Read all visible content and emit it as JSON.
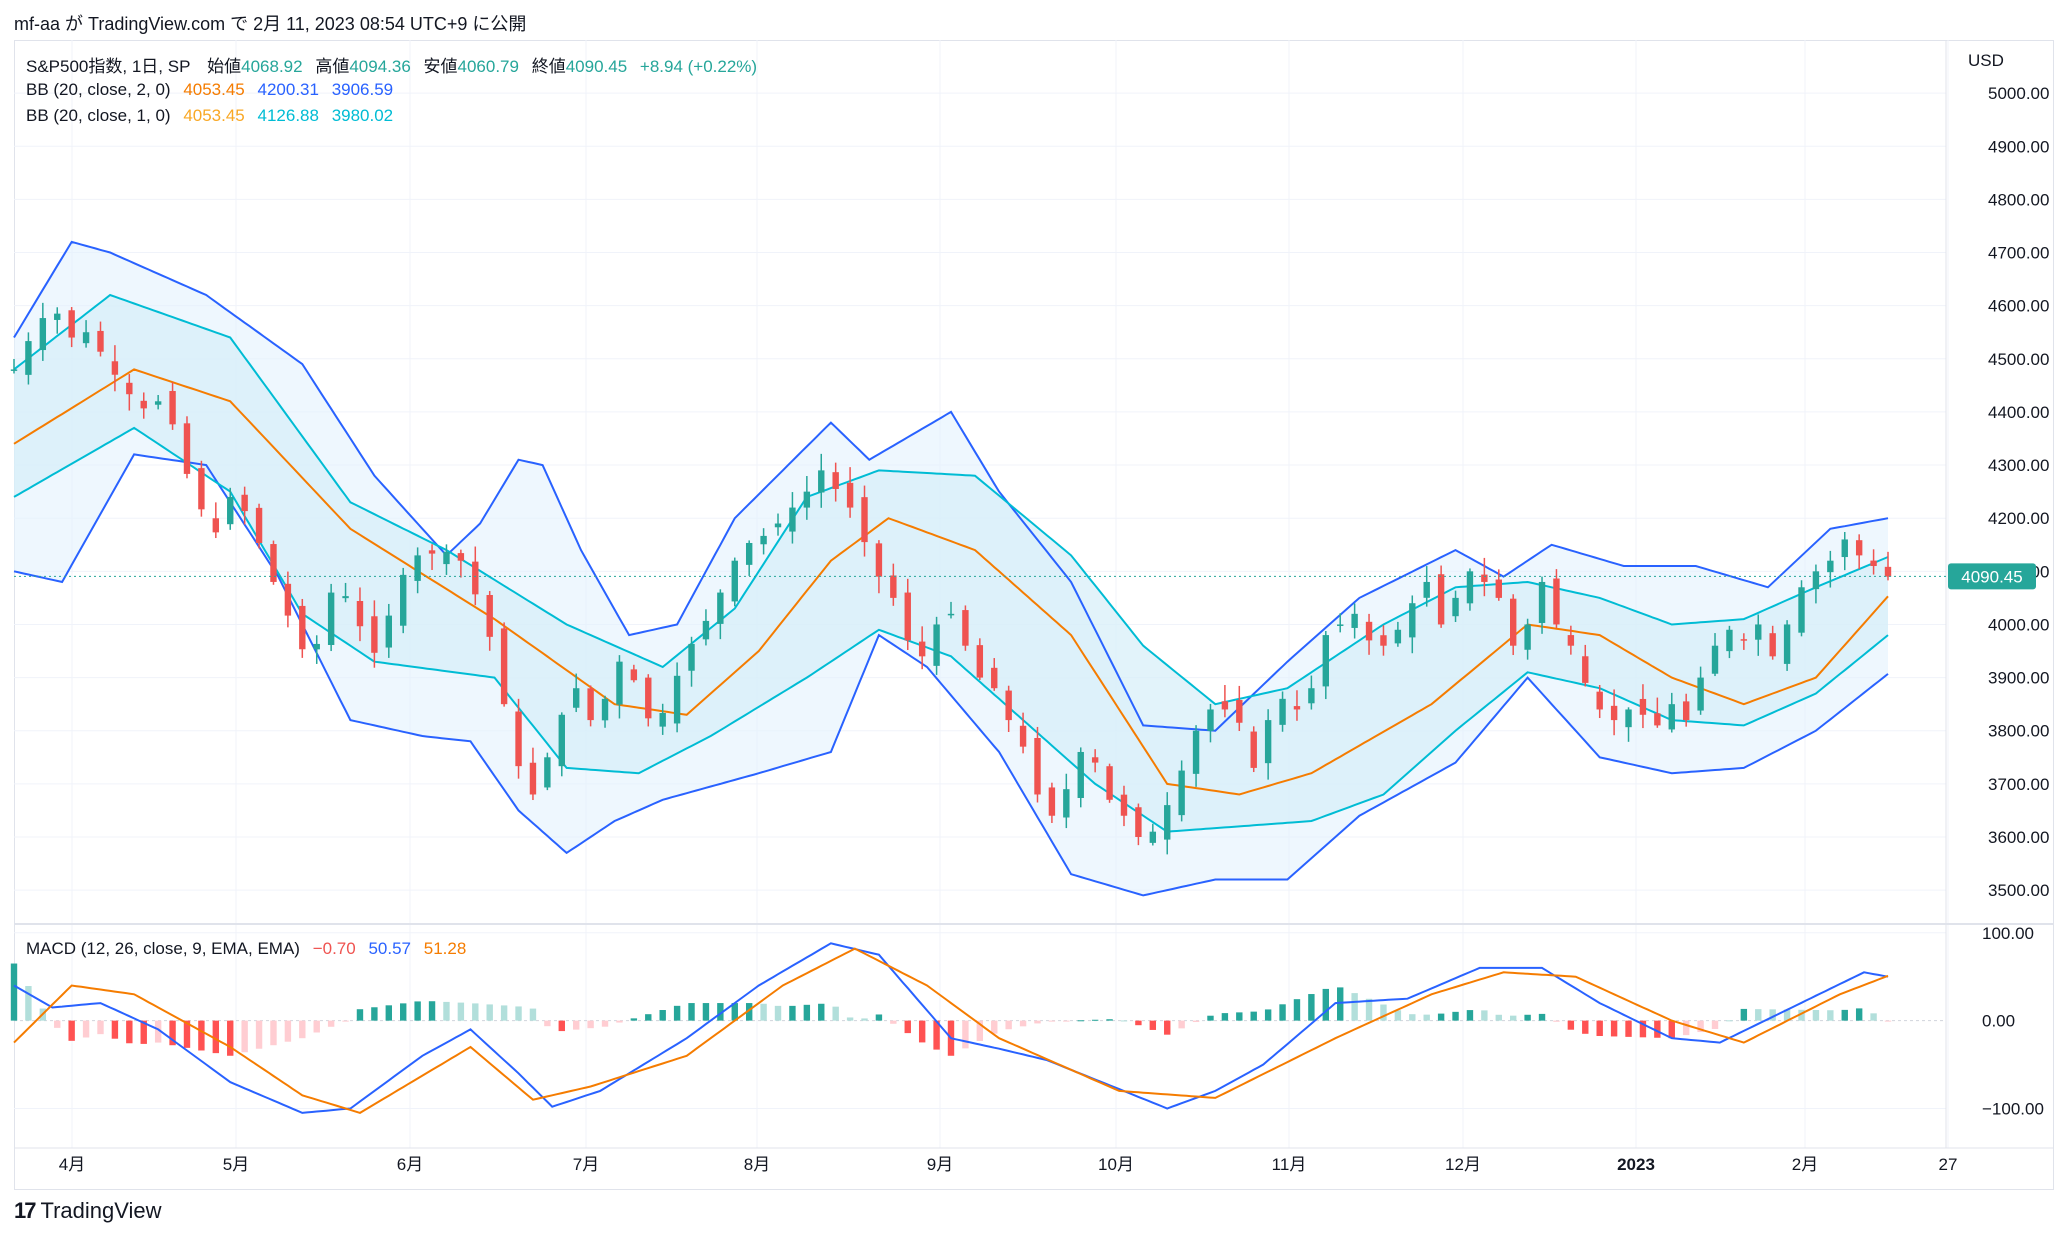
{
  "header": {
    "publish_line": "mf-aa が TradingView.com で 2月 11, 2023 08:54 UTC+9 に公開"
  },
  "legend": {
    "symbol": "S&P500指数, 1日, SP",
    "open_label": "始値",
    "open": "4068.92",
    "high_label": "高値",
    "high": "4094.36",
    "low_label": "安値",
    "low": "4060.79",
    "close_label": "終値",
    "close": "4090.45",
    "change": "+8.94 (+0.22%)",
    "bb2_label": "BB (20, close, 2, 0)",
    "bb2_basis": "4053.45",
    "bb2_upper": "4200.31",
    "bb2_lower": "3906.59",
    "bb1_label": "BB (20, close, 1, 0)",
    "bb1_basis": "4053.45",
    "bb1_upper": "4126.88",
    "bb1_lower": "3980.02",
    "macd_label": "MACD (12, 26, close, 9, EMA, EMA)",
    "macd_hist": "−0.70",
    "macd_line": "50.57",
    "macd_signal": "51.28"
  },
  "price_axis": {
    "currency": "USD",
    "last_price_label": "4090.45"
  },
  "footer": {
    "logo": "17",
    "brand": "TradingView"
  },
  "colors": {
    "up": "#26a69a",
    "down": "#ef5350",
    "basis": "#f57c00",
    "bb2_band": "#2962ff",
    "bb1_band": "#00bcd4",
    "macd_line": "#2962ff",
    "signal_line": "#f57c00",
    "hist_up_strong": "#26a69a",
    "hist_up_weak": "#b2dfdb",
    "hist_down_strong": "#ff5252",
    "hist_down_weak": "#ffcdd2"
  },
  "chart_data": [
    {
      "type": "candlestick",
      "title": "S&P500指数, 1日, SP",
      "ylim": [
        3440,
        5100
      ],
      "yticks": [
        "3500.00",
        "3600.00",
        "3700.00",
        "3800.00",
        "3900.00",
        "4000.00",
        "4100.00",
        "4200.00",
        "4300.00",
        "4400.00",
        "4500.00",
        "4600.00",
        "4700.00",
        "4800.00",
        "4900.00",
        "5000.00"
      ],
      "x_labels": [
        "4月",
        "5月",
        "6月",
        "7月",
        "8月",
        "9月",
        "10月",
        "11月",
        "12月",
        "2023",
        "2月",
        "27"
      ],
      "close_path": [
        [
          0,
          4480
        ],
        [
          2,
          4520
        ],
        [
          5,
          4560
        ],
        [
          8,
          4610
        ],
        [
          10,
          4560
        ],
        [
          13,
          4530
        ],
        [
          16,
          4560
        ],
        [
          19,
          4490
        ],
        [
          22,
          4460
        ],
        [
          25,
          4420
        ],
        [
          28,
          4400
        ],
        [
          31,
          4430
        ],
        [
          34,
          4350
        ],
        [
          37,
          4250
        ],
        [
          40,
          4200
        ],
        [
          43,
          4160
        ],
        [
          46,
          4280
        ],
        [
          49,
          4180
        ],
        [
          52,
          4140
        ],
        [
          55,
          4050
        ],
        [
          58,
          4000
        ],
        [
          61,
          3930
        ],
        [
          64,
          3980
        ],
        [
          67,
          4100
        ],
        [
          70,
          4030
        ],
        [
          73,
          3980
        ],
        [
          76,
          3930
        ],
        [
          79,
          4060
        ],
        [
          82,
          4110
        ],
        [
          85,
          4140
        ],
        [
          88,
          4130
        ],
        [
          91,
          4140
        ],
        [
          94,
          4110
        ],
        [
          97,
          4030
        ],
        [
          100,
          3950
        ],
        [
          103,
          3800
        ],
        [
          106,
          3700
        ],
        [
          108,
          3680
        ],
        [
          110,
          3730
        ],
        [
          112,
          3770
        ],
        [
          114,
          3830
        ],
        [
          116,
          3900
        ],
        [
          118,
          3860
        ],
        [
          120,
          3820
        ],
        [
          122,
          3840
        ],
        [
          124,
          3880
        ],
        [
          126,
          3930
        ],
        [
          128,
          3920
        ],
        [
          130,
          3870
        ],
        [
          133,
          3800
        ],
        [
          136,
          3850
        ],
        [
          139,
          3930
        ],
        [
          142,
          3980
        ],
        [
          145,
          4020
        ],
        [
          148,
          4080
        ],
        [
          151,
          4140
        ],
        [
          154,
          4160
        ],
        [
          157,
          4170
        ],
        [
          160,
          4200
        ],
        [
          163,
          4230
        ],
        [
          166,
          4260
        ],
        [
          168,
          4290
        ],
        [
          170,
          4270
        ],
        [
          172,
          4240
        ],
        [
          174,
          4220
        ],
        [
          176,
          4170
        ],
        [
          178,
          4140
        ],
        [
          180,
          4090
        ],
        [
          183,
          4050
        ],
        [
          186,
          3970
        ],
        [
          189,
          3940
        ],
        [
          192,
          4000
        ],
        [
          195,
          4020
        ],
        [
          198,
          3960
        ],
        [
          201,
          3900
        ],
        [
          204,
          3880
        ],
        [
          207,
          3820
        ],
        [
          210,
          3770
        ],
        [
          213,
          3680
        ],
        [
          216,
          3640
        ],
        [
          219,
          3690
        ],
        [
          222,
          3760
        ],
        [
          225,
          3740
        ],
        [
          228,
          3670
        ],
        [
          231,
          3640
        ],
        [
          234,
          3600
        ],
        [
          236,
          3630
        ],
        [
          238,
          3590
        ],
        [
          240,
          3660
        ],
        [
          242,
          3700
        ],
        [
          244,
          3750
        ],
        [
          246,
          3800
        ],
        [
          248,
          3820
        ],
        [
          250,
          3860
        ],
        [
          252,
          3840
        ],
        [
          254,
          3870
        ],
        [
          256,
          3760
        ],
        [
          258,
          3730
        ],
        [
          261,
          3820
        ],
        [
          264,
          3860
        ],
        [
          267,
          3840
        ],
        [
          270,
          3880
        ],
        [
          273,
          3980
        ],
        [
          276,
          4000
        ],
        [
          279,
          4020
        ],
        [
          282,
          3970
        ],
        [
          285,
          3960
        ],
        [
          288,
          3990
        ],
        [
          291,
          4040
        ],
        [
          294,
          4080
        ],
        [
          297,
          4000
        ],
        [
          300,
          4050
        ],
        [
          303,
          4100
        ],
        [
          306,
          4080
        ],
        [
          309,
          4050
        ],
        [
          312,
          3960
        ],
        [
          315,
          4000
        ],
        [
          318,
          4080
        ],
        [
          321,
          4000
        ],
        [
          324,
          3960
        ],
        [
          327,
          3890
        ],
        [
          330,
          3840
        ],
        [
          333,
          3820
        ],
        [
          336,
          3840
        ],
        [
          339,
          3830
        ],
        [
          342,
          3810
        ],
        [
          345,
          3850
        ],
        [
          348,
          3820
        ],
        [
          351,
          3900
        ],
        [
          354,
          3960
        ],
        [
          357,
          3990
        ],
        [
          360,
          3970
        ],
        [
          363,
          4000
        ],
        [
          366,
          3940
        ],
        [
          369,
          4000
        ],
        [
          372,
          4070
        ],
        [
          375,
          4100
        ],
        [
          378,
          4120
        ],
        [
          381,
          4160
        ],
        [
          384,
          4130
        ],
        [
          387,
          4110
        ],
        [
          390,
          4090
        ]
      ],
      "bb_basis": [
        [
          0,
          4340
        ],
        [
          25,
          4480
        ],
        [
          45,
          4420
        ],
        [
          70,
          4180
        ],
        [
          100,
          4010
        ],
        [
          125,
          3850
        ],
        [
          140,
          3830
        ],
        [
          155,
          3950
        ],
        [
          170,
          4120
        ],
        [
          182,
          4200
        ],
        [
          200,
          4140
        ],
        [
          220,
          3980
        ],
        [
          240,
          3700
        ],
        [
          255,
          3680
        ],
        [
          270,
          3720
        ],
        [
          295,
          3850
        ],
        [
          315,
          4000
        ],
        [
          330,
          3980
        ],
        [
          345,
          3900
        ],
        [
          360,
          3850
        ],
        [
          375,
          3900
        ],
        [
          390,
          4053
        ]
      ],
      "bb1_upper": [
        [
          0,
          4480
        ],
        [
          20,
          4620
        ],
        [
          45,
          4540
        ],
        [
          70,
          4230
        ],
        [
          90,
          4140
        ],
        [
          115,
          4000
        ],
        [
          135,
          3920
        ],
        [
          150,
          4030
        ],
        [
          165,
          4240
        ],
        [
          180,
          4290
        ],
        [
          200,
          4280
        ],
        [
          220,
          4130
        ],
        [
          235,
          3960
        ],
        [
          250,
          3850
        ],
        [
          265,
          3880
        ],
        [
          285,
          4000
        ],
        [
          300,
          4070
        ],
        [
          315,
          4080
        ],
        [
          330,
          4050
        ],
        [
          345,
          4000
        ],
        [
          360,
          4010
        ],
        [
          375,
          4070
        ],
        [
          390,
          4127
        ]
      ],
      "bb1_lower": [
        [
          0,
          4240
        ],
        [
          25,
          4370
        ],
        [
          45,
          4250
        ],
        [
          60,
          4020
        ],
        [
          75,
          3930
        ],
        [
          100,
          3900
        ],
        [
          115,
          3730
        ],
        [
          130,
          3720
        ],
        [
          145,
          3790
        ],
        [
          165,
          3900
        ],
        [
          180,
          3990
        ],
        [
          195,
          3940
        ],
        [
          210,
          3820
        ],
        [
          225,
          3700
        ],
        [
          240,
          3610
        ],
        [
          255,
          3620
        ],
        [
          270,
          3630
        ],
        [
          285,
          3680
        ],
        [
          300,
          3800
        ],
        [
          315,
          3910
        ],
        [
          330,
          3880
        ],
        [
          345,
          3820
        ],
        [
          360,
          3810
        ],
        [
          375,
          3870
        ],
        [
          390,
          3980
        ]
      ],
      "bb2_upper": [
        [
          0,
          4540
        ],
        [
          12,
          4720
        ],
        [
          20,
          4700
        ],
        [
          40,
          4620
        ],
        [
          60,
          4490
        ],
        [
          75,
          4280
        ],
        [
          90,
          4130
        ],
        [
          97,
          4190
        ],
        [
          105,
          4310
        ],
        [
          110,
          4300
        ],
        [
          118,
          4140
        ],
        [
          128,
          3980
        ],
        [
          138,
          4000
        ],
        [
          150,
          4200
        ],
        [
          170,
          4380
        ],
        [
          178,
          4310
        ],
        [
          195,
          4400
        ],
        [
          205,
          4250
        ],
        [
          220,
          4080
        ],
        [
          235,
          3810
        ],
        [
          250,
          3800
        ],
        [
          265,
          3930
        ],
        [
          280,
          4050
        ],
        [
          300,
          4140
        ],
        [
          310,
          4090
        ],
        [
          320,
          4150
        ],
        [
          335,
          4110
        ],
        [
          350,
          4110
        ],
        [
          365,
          4070
        ],
        [
          378,
          4180
        ],
        [
          390,
          4200
        ]
      ],
      "bb2_lower": [
        [
          0,
          4100
        ],
        [
          10,
          4080
        ],
        [
          25,
          4320
        ],
        [
          40,
          4300
        ],
        [
          55,
          4090
        ],
        [
          70,
          3820
        ],
        [
          85,
          3790
        ],
        [
          95,
          3780
        ],
        [
          105,
          3650
        ],
        [
          115,
          3570
        ],
        [
          125,
          3630
        ],
        [
          135,
          3670
        ],
        [
          155,
          3720
        ],
        [
          170,
          3760
        ],
        [
          180,
          3980
        ],
        [
          190,
          3920
        ],
        [
          205,
          3760
        ],
        [
          220,
          3530
        ],
        [
          235,
          3490
        ],
        [
          250,
          3520
        ],
        [
          265,
          3520
        ],
        [
          280,
          3640
        ],
        [
          300,
          3740
        ],
        [
          315,
          3900
        ],
        [
          330,
          3750
        ],
        [
          345,
          3720
        ],
        [
          360,
          3730
        ],
        [
          375,
          3800
        ],
        [
          390,
          3907
        ]
      ]
    },
    {
      "type": "macd",
      "title": "MACD (12, 26, close, 9, EMA, EMA)",
      "ylim": [
        -145,
        110
      ],
      "yticks": [
        "100.00",
        "0.00",
        "−100.00"
      ],
      "macd_line": [
        [
          0,
          40
        ],
        [
          8,
          15
        ],
        [
          18,
          20
        ],
        [
          30,
          -10
        ],
        [
          45,
          -70
        ],
        [
          60,
          -105
        ],
        [
          70,
          -100
        ],
        [
          85,
          -40
        ],
        [
          95,
          -10
        ],
        [
          105,
          -60
        ],
        [
          112,
          -98
        ],
        [
          122,
          -80
        ],
        [
          140,
          -20
        ],
        [
          155,
          40
        ],
        [
          170,
          88
        ],
        [
          180,
          75
        ],
        [
          195,
          -20
        ],
        [
          205,
          -32
        ],
        [
          215,
          -45
        ],
        [
          240,
          -100
        ],
        [
          250,
          -80
        ],
        [
          260,
          -50
        ],
        [
          275,
          20
        ],
        [
          290,
          25
        ],
        [
          305,
          60
        ],
        [
          318,
          60
        ],
        [
          330,
          20
        ],
        [
          345,
          -20
        ],
        [
          355,
          -25
        ],
        [
          370,
          15
        ],
        [
          385,
          55
        ],
        [
          390,
          50
        ]
      ],
      "signal_line": [
        [
          0,
          -25
        ],
        [
          12,
          40
        ],
        [
          25,
          30
        ],
        [
          45,
          -30
        ],
        [
          60,
          -85
        ],
        [
          72,
          -105
        ],
        [
          95,
          -30
        ],
        [
          108,
          -90
        ],
        [
          120,
          -75
        ],
        [
          140,
          -40
        ],
        [
          160,
          40
        ],
        [
          175,
          82
        ],
        [
          190,
          40
        ],
        [
          205,
          -20
        ],
        [
          230,
          -80
        ],
        [
          250,
          -88
        ],
        [
          275,
          -20
        ],
        [
          295,
          30
        ],
        [
          310,
          55
        ],
        [
          325,
          50
        ],
        [
          345,
          0
        ],
        [
          360,
          -25
        ],
        [
          380,
          30
        ],
        [
          390,
          51
        ]
      ]
    }
  ]
}
